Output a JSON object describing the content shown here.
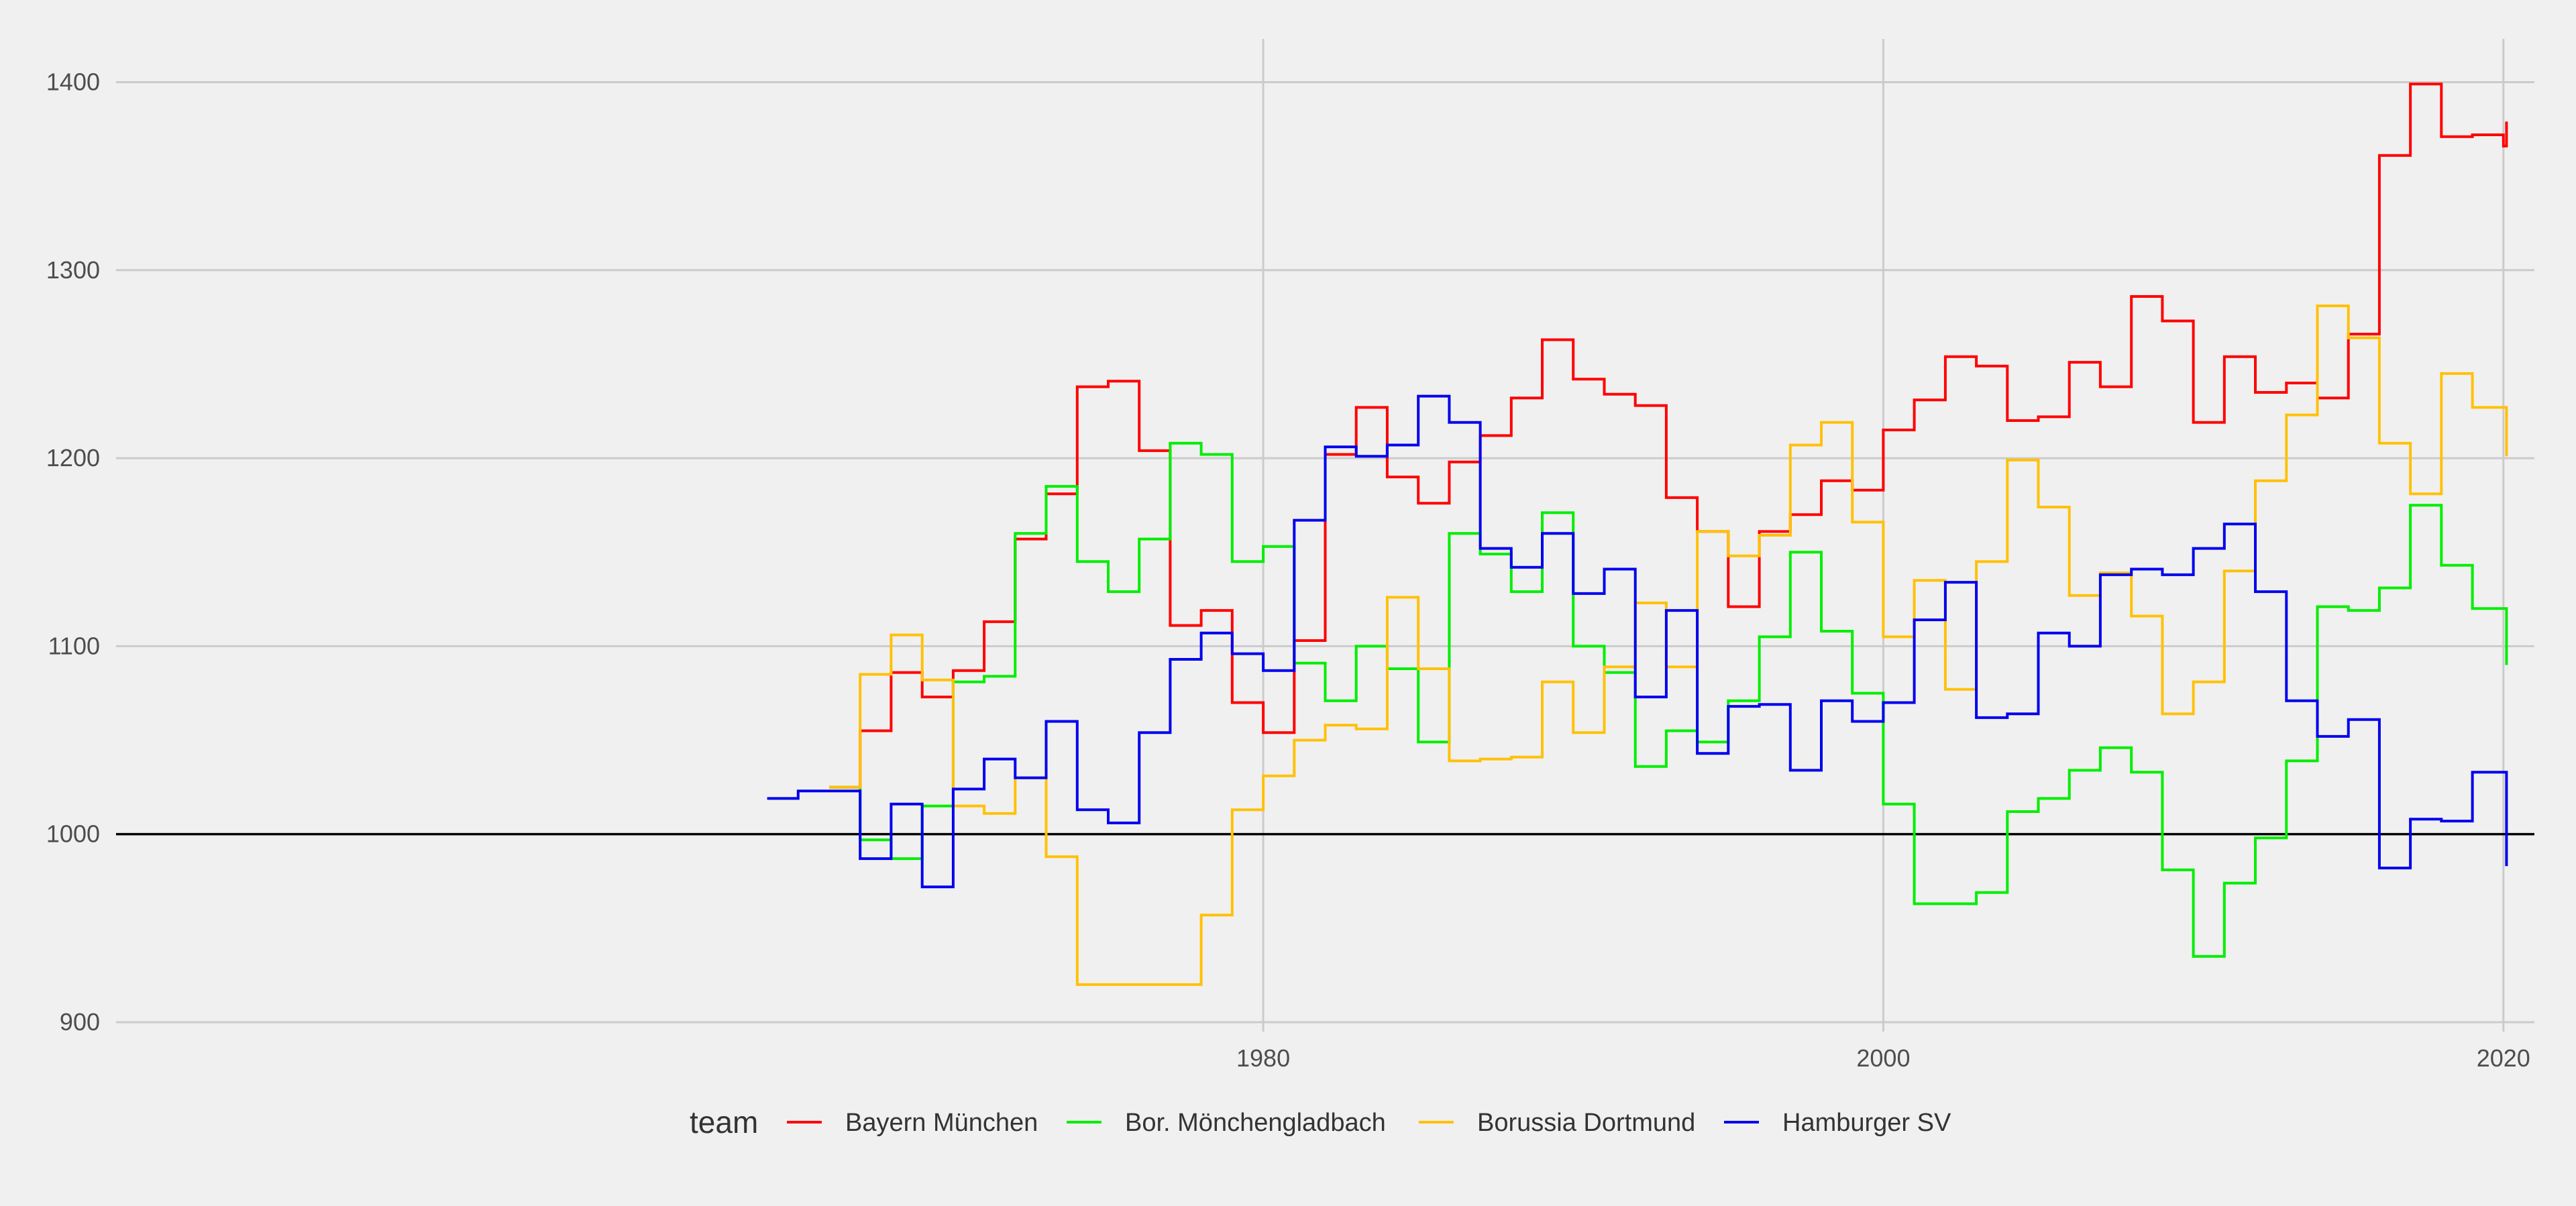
{
  "chart_data": {
    "type": "line",
    "step": true,
    "title": "",
    "xlabel": "",
    "ylabel": "",
    "xlim": [
      1943,
      2021
    ],
    "ylim": [
      895,
      1423
    ],
    "x_ticks": [
      1980,
      2000,
      2020
    ],
    "y_ticks": [
      900,
      1000,
      1100,
      1200,
      1300,
      1400
    ],
    "reference_line": 1000,
    "grid": true,
    "legend_title": "team",
    "legend_position": "bottom",
    "series": [
      {
        "name": "Bayern München",
        "color": "#ff0000",
        "points": [
          [
            1966,
            1025
          ],
          [
            1967,
            1055
          ],
          [
            1968,
            1086
          ],
          [
            1969,
            1073
          ],
          [
            1970,
            1087
          ],
          [
            1971,
            1113
          ],
          [
            1972,
            1157
          ],
          [
            1973,
            1181
          ],
          [
            1974,
            1238
          ],
          [
            1975,
            1241
          ],
          [
            1976,
            1204
          ],
          [
            1977,
            1111
          ],
          [
            1978,
            1119
          ],
          [
            1979,
            1070
          ],
          [
            1980,
            1054
          ],
          [
            1981,
            1103
          ],
          [
            1982,
            1202
          ],
          [
            1983,
            1227
          ],
          [
            1984,
            1190
          ],
          [
            1985,
            1176
          ],
          [
            1986,
            1198
          ],
          [
            1987,
            1212
          ],
          [
            1988,
            1232
          ],
          [
            1989,
            1263
          ],
          [
            1990,
            1242
          ],
          [
            1991,
            1234
          ],
          [
            1992,
            1228
          ],
          [
            1993,
            1179
          ],
          [
            1994,
            1161
          ],
          [
            1995,
            1121
          ],
          [
            1996,
            1161
          ],
          [
            1997,
            1170
          ],
          [
            1998,
            1188
          ],
          [
            1999,
            1183
          ],
          [
            2000,
            1215
          ],
          [
            2001,
            1231
          ],
          [
            2002,
            1254
          ],
          [
            2003,
            1249
          ],
          [
            2004,
            1220
          ],
          [
            2005,
            1222
          ],
          [
            2006,
            1251
          ],
          [
            2007,
            1238
          ],
          [
            2008,
            1286
          ],
          [
            2009,
            1273
          ],
          [
            2010,
            1219
          ],
          [
            2011,
            1254
          ],
          [
            2012,
            1235
          ],
          [
            2013,
            1240
          ],
          [
            2014,
            1232
          ],
          [
            2015,
            1266
          ],
          [
            2016,
            1361
          ],
          [
            2017,
            1399
          ],
          [
            2018,
            1371
          ],
          [
            2019,
            1372
          ],
          [
            2020,
            1366
          ],
          [
            2020.1,
            1379
          ]
        ]
      },
      {
        "name": "Bor. Mönchengladbach",
        "color": "#00ee00",
        "points": [
          [
            1966,
            1025
          ],
          [
            1967,
            997
          ],
          [
            1968,
            987
          ],
          [
            1969,
            1015
          ],
          [
            1970,
            1081
          ],
          [
            1971,
            1084
          ],
          [
            1972,
            1160
          ],
          [
            1973,
            1185
          ],
          [
            1974,
            1145
          ],
          [
            1975,
            1129
          ],
          [
            1976,
            1157
          ],
          [
            1977,
            1208
          ],
          [
            1978,
            1202
          ],
          [
            1979,
            1145
          ],
          [
            1980,
            1153
          ],
          [
            1981,
            1091
          ],
          [
            1982,
            1071
          ],
          [
            1983,
            1100
          ],
          [
            1984,
            1088
          ],
          [
            1985,
            1049
          ],
          [
            1986,
            1160
          ],
          [
            1987,
            1149
          ],
          [
            1988,
            1129
          ],
          [
            1989,
            1171
          ],
          [
            1990,
            1100
          ],
          [
            1991,
            1086
          ],
          [
            1992,
            1036
          ],
          [
            1993,
            1055
          ],
          [
            1994,
            1049
          ],
          [
            1995,
            1071
          ],
          [
            1996,
            1105
          ],
          [
            1997,
            1150
          ],
          [
            1998,
            1108
          ],
          [
            1999,
            1075
          ],
          [
            2000,
            1016
          ],
          [
            2001,
            963
          ],
          [
            2002,
            963
          ],
          [
            2003,
            969
          ],
          [
            2004,
            1012
          ],
          [
            2005,
            1019
          ],
          [
            2006,
            1034
          ],
          [
            2007,
            1046
          ],
          [
            2008,
            1033
          ],
          [
            2009,
            981
          ],
          [
            2010,
            935
          ],
          [
            2011,
            974
          ],
          [
            2012,
            998
          ],
          [
            2013,
            1039
          ],
          [
            2014,
            1121
          ],
          [
            2015,
            1119
          ],
          [
            2016,
            1131
          ],
          [
            2017,
            1175
          ],
          [
            2018,
            1143
          ],
          [
            2019,
            1120
          ],
          [
            2020,
            1120
          ],
          [
            2020.1,
            1090
          ]
        ]
      },
      {
        "name": "Borussia Dortmund",
        "color": "#ffc107",
        "points": [
          [
            1966,
            1025
          ],
          [
            1967,
            1085
          ],
          [
            1968,
            1106
          ],
          [
            1969,
            1082
          ],
          [
            1970,
            1015
          ],
          [
            1971,
            1011
          ],
          [
            1972,
            1030
          ],
          [
            1973,
            988
          ],
          [
            1974,
            920
          ],
          [
            1975,
            920
          ],
          [
            1976,
            920
          ],
          [
            1977,
            920
          ],
          [
            1978,
            957
          ],
          [
            1979,
            1013
          ],
          [
            1980,
            1031
          ],
          [
            1981,
            1050
          ],
          [
            1982,
            1058
          ],
          [
            1983,
            1056
          ],
          [
            1984,
            1126
          ],
          [
            1985,
            1088
          ],
          [
            1986,
            1039
          ],
          [
            1987,
            1040
          ],
          [
            1988,
            1041
          ],
          [
            1989,
            1081
          ],
          [
            1990,
            1054
          ],
          [
            1991,
            1089
          ],
          [
            1992,
            1123
          ],
          [
            1993,
            1089
          ],
          [
            1994,
            1161
          ],
          [
            1995,
            1148
          ],
          [
            1996,
            1159
          ],
          [
            1997,
            1207
          ],
          [
            1998,
            1219
          ],
          [
            1999,
            1166
          ],
          [
            2000,
            1105
          ],
          [
            2001,
            1135
          ],
          [
            2002,
            1077
          ],
          [
            2003,
            1145
          ],
          [
            2004,
            1199
          ],
          [
            2005,
            1174
          ],
          [
            2006,
            1127
          ],
          [
            2007,
            1139
          ],
          [
            2008,
            1116
          ],
          [
            2009,
            1064
          ],
          [
            2010,
            1081
          ],
          [
            2011,
            1140
          ],
          [
            2012,
            1188
          ],
          [
            2013,
            1223
          ],
          [
            2014,
            1281
          ],
          [
            2015,
            1264
          ],
          [
            2016,
            1208
          ],
          [
            2017,
            1181
          ],
          [
            2018,
            1245
          ],
          [
            2019,
            1227
          ],
          [
            2020,
            1227
          ],
          [
            2020.1,
            1201
          ]
        ]
      },
      {
        "name": "Hamburger SV",
        "color": "#0000ee",
        "points": [
          [
            1964,
            1019
          ],
          [
            1965,
            1023
          ],
          [
            1966,
            1023
          ],
          [
            1967,
            987
          ],
          [
            1968,
            1016
          ],
          [
            1969,
            972
          ],
          [
            1970,
            1024
          ],
          [
            1971,
            1040
          ],
          [
            1972,
            1030
          ],
          [
            1973,
            1060
          ],
          [
            1974,
            1013
          ],
          [
            1975,
            1006
          ],
          [
            1976,
            1054
          ],
          [
            1977,
            1093
          ],
          [
            1978,
            1107
          ],
          [
            1979,
            1096
          ],
          [
            1980,
            1087
          ],
          [
            1981,
            1167
          ],
          [
            1982,
            1206
          ],
          [
            1983,
            1201
          ],
          [
            1984,
            1207
          ],
          [
            1985,
            1233
          ],
          [
            1986,
            1219
          ],
          [
            1987,
            1152
          ],
          [
            1988,
            1142
          ],
          [
            1989,
            1160
          ],
          [
            1990,
            1128
          ],
          [
            1991,
            1141
          ],
          [
            1992,
            1073
          ],
          [
            1993,
            1119
          ],
          [
            1994,
            1043
          ],
          [
            1995,
            1068
          ],
          [
            1996,
            1069
          ],
          [
            1997,
            1034
          ],
          [
            1998,
            1071
          ],
          [
            1999,
            1060
          ],
          [
            2000,
            1070
          ],
          [
            2001,
            1114
          ],
          [
            2002,
            1134
          ],
          [
            2003,
            1062
          ],
          [
            2004,
            1064
          ],
          [
            2005,
            1107
          ],
          [
            2006,
            1100
          ],
          [
            2007,
            1138
          ],
          [
            2008,
            1141
          ],
          [
            2009,
            1138
          ],
          [
            2010,
            1152
          ],
          [
            2011,
            1165
          ],
          [
            2012,
            1129
          ],
          [
            2013,
            1071
          ],
          [
            2014,
            1052
          ],
          [
            2015,
            1061
          ],
          [
            2016,
            982
          ],
          [
            2017,
            1008
          ],
          [
            2018,
            1007
          ],
          [
            2019,
            1033
          ],
          [
            2020,
            1033
          ],
          [
            2020.1,
            983
          ]
        ]
      }
    ]
  }
}
